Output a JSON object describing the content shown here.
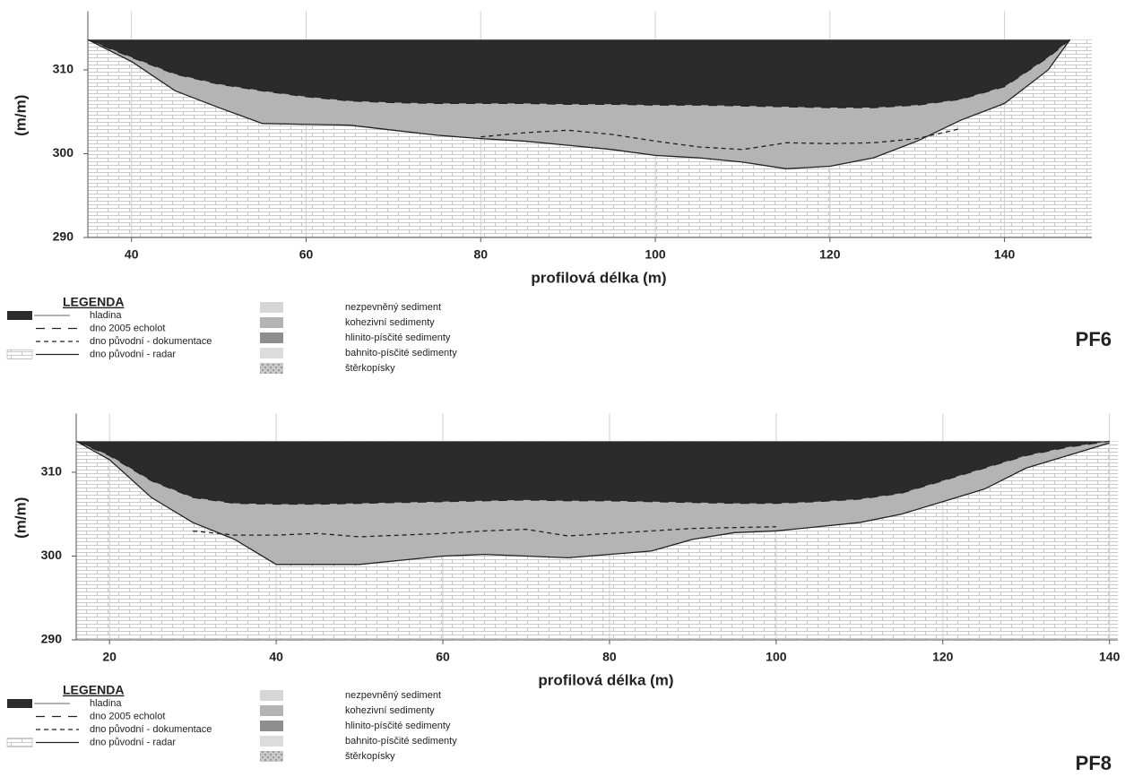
{
  "chart_data": [
    {
      "type": "area",
      "title": "PF6",
      "xlabel": "profilová délka (m)",
      "ylabel": "(m/m)",
      "xlim": [
        35,
        150
      ],
      "ylim": [
        290,
        317
      ],
      "xticks": [
        40,
        60,
        80,
        100,
        120,
        140
      ],
      "yticks": [
        290,
        300,
        310
      ],
      "grid": true,
      "legend_title": "LEGENDA",
      "water": {
        "name": "hladina",
        "color": "#2b2b2b",
        "level": 313.6
      },
      "x": [
        35,
        40,
        45,
        50,
        55,
        60,
        65,
        70,
        75,
        80,
        85,
        90,
        95,
        100,
        105,
        110,
        115,
        120,
        125,
        130,
        135,
        140,
        145,
        147.5
      ],
      "series": [
        {
          "name": "dno 2005 echolot",
          "color": "#222222",
          "dash": "long",
          "values": [
            313.6,
            311.5,
            309.5,
            308.3,
            307.5,
            306.8,
            306.3,
            306.1,
            306,
            306,
            306,
            305.9,
            305.9,
            305.8,
            305.8,
            305.7,
            305.6,
            305.5,
            305.5,
            305.8,
            306.5,
            308,
            311.5,
            313.6
          ]
        },
        {
          "name": "dno původní - dokumentace",
          "color": "#222222",
          "dash": "short",
          "values": [
            null,
            null,
            null,
            null,
            null,
            null,
            null,
            null,
            null,
            302,
            302.5,
            302.8,
            302.3,
            301.5,
            300.8,
            300.5,
            301.3,
            301.2,
            301.3,
            301.8,
            303,
            null,
            null,
            null
          ]
        },
        {
          "name": "dno původní - radar",
          "color": "#222222",
          "dash": "solid",
          "values": [
            313.6,
            311,
            307.5,
            305.5,
            303.6,
            303.5,
            303.4,
            302.8,
            302.2,
            301.8,
            301.5,
            301,
            300.5,
            299.8,
            299.5,
            299,
            298.2,
            298.5,
            299.5,
            301.5,
            304,
            306,
            310,
            313.6
          ]
        }
      ],
      "sediments": [
        {
          "name": "nezpevněný sediment",
          "color": "#d6d6d6"
        },
        {
          "name": "kohezivní sedimenty",
          "color": "#b4b4b4"
        },
        {
          "name": "hlinito-písčité sedimenty",
          "color": "#8e8e8e"
        },
        {
          "name": "bahnito-písčité sedimenty",
          "color": "#dcdcdc"
        },
        {
          "name": "štěrkopísky",
          "color": "#c9c9c9"
        }
      ]
    },
    {
      "type": "area",
      "title": "PF8",
      "xlabel": "profilová délka (m)",
      "ylabel": "(m/m)",
      "xlim": [
        16,
        141
      ],
      "ylim": [
        290,
        317
      ],
      "xticks": [
        20,
        40,
        60,
        80,
        100,
        120,
        140
      ],
      "yticks": [
        290,
        300,
        310
      ],
      "grid": true,
      "legend_title": "LEGENDA",
      "water": {
        "name": "hladina",
        "color": "#2b2b2b",
        "level": 313.7
      },
      "x": [
        16,
        20,
        25,
        30,
        35,
        40,
        45,
        50,
        55,
        60,
        65,
        70,
        75,
        80,
        85,
        90,
        95,
        100,
        105,
        110,
        115,
        120,
        125,
        130,
        135,
        140
      ],
      "series": [
        {
          "name": "dno 2005 echolot",
          "color": "#222222",
          "dash": "long",
          "values": [
            313.7,
            312,
            309,
            307,
            306.3,
            306.2,
            306.2,
            306.3,
            306.4,
            306.5,
            306.6,
            306.7,
            306.6,
            306.6,
            306.5,
            306.4,
            306.3,
            306.3,
            306.5,
            306.8,
            307.5,
            309,
            310.5,
            312,
            313,
            313.7
          ]
        },
        {
          "name": "dno původní - dokumentace",
          "color": "#222222",
          "dash": "short",
          "values": [
            null,
            null,
            null,
            303,
            302.5,
            302.5,
            302.7,
            302.3,
            302.5,
            302.7,
            303,
            303.2,
            302.4,
            302.7,
            303,
            303.3,
            303.4,
            303.5,
            null,
            null,
            null,
            null,
            null,
            null,
            null,
            null
          ]
        },
        {
          "name": "dno původní - radar",
          "color": "#222222",
          "dash": "solid",
          "values": [
            313.7,
            311.5,
            307,
            304,
            302,
            299,
            299,
            299,
            299.5,
            300,
            300.2,
            300,
            299.8,
            300.2,
            300.6,
            302,
            302.8,
            303,
            303.5,
            304,
            305,
            306.5,
            308,
            310.5,
            312,
            313.5
          ]
        }
      ],
      "sediments": [
        {
          "name": "nezpevněný sediment",
          "color": "#d6d6d6"
        },
        {
          "name": "kohezivní sedimenty",
          "color": "#b4b4b4"
        },
        {
          "name": "hlinito-písčité sedimenty",
          "color": "#8e8e8e"
        },
        {
          "name": "bahnito-písčité sedimenty",
          "color": "#dcdcdc"
        },
        {
          "name": "štěrkopísky",
          "color": "#c9c9c9"
        }
      ]
    }
  ]
}
